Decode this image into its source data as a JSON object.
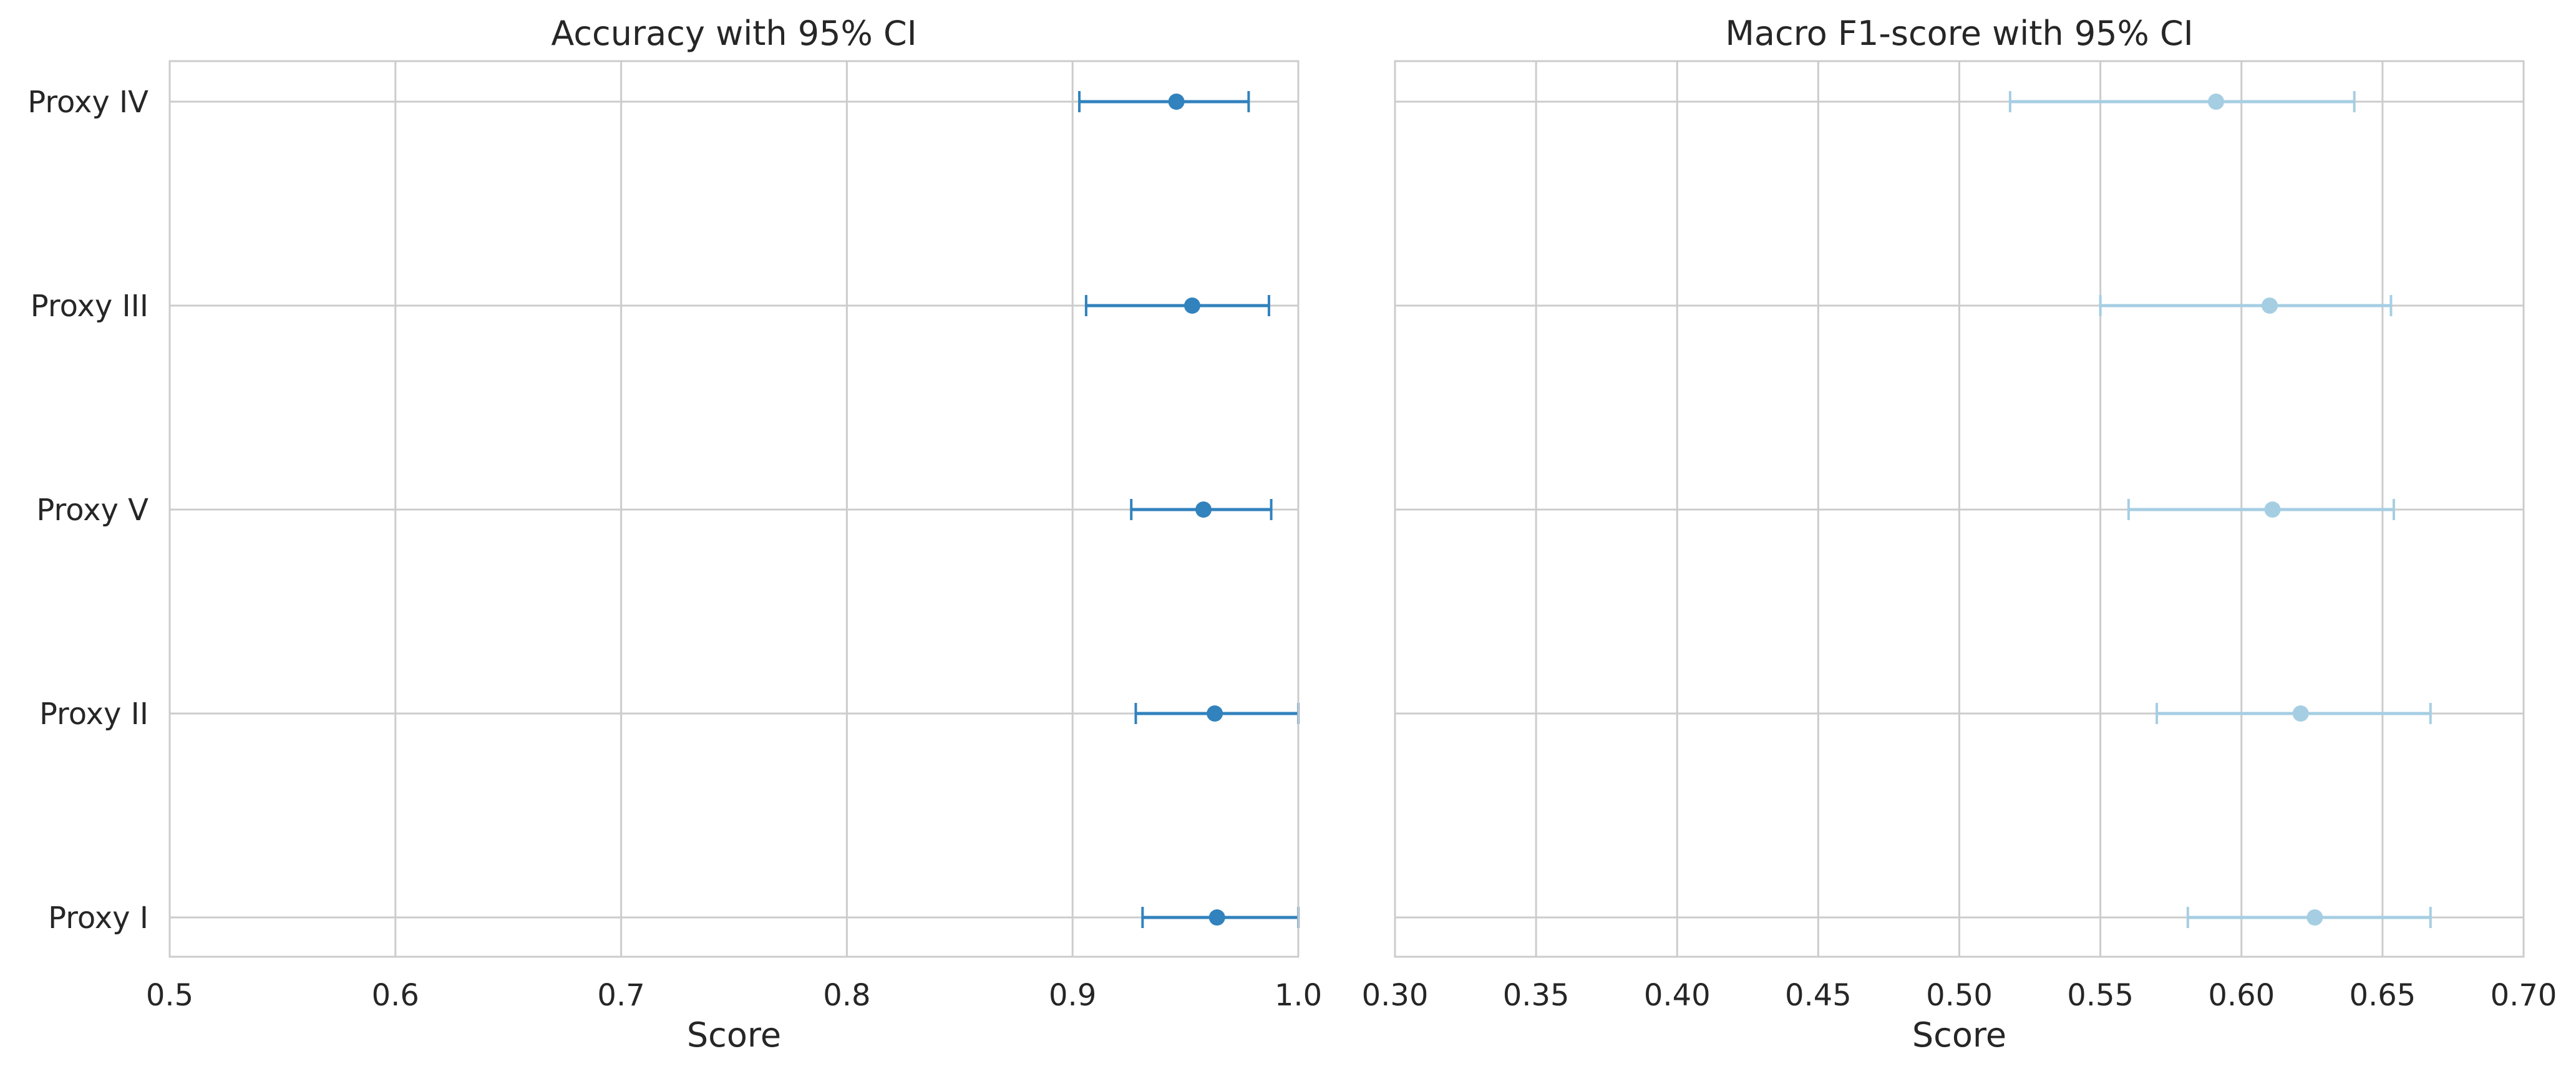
{
  "chart_data": [
    {
      "type": "errorbar",
      "title": "Accuracy with 95% CI",
      "xlabel": "Score",
      "ylabel": "",
      "xlim": [
        0.5,
        1.0
      ],
      "xticks": [
        "0.5",
        "0.6",
        "0.7",
        "0.8",
        "0.9",
        "1.0"
      ],
      "categories": [
        "Proxy IV",
        "Proxy III",
        "Proxy V",
        "Proxy II",
        "Proxy I"
      ],
      "values": [
        0.946,
        0.953,
        0.958,
        0.963,
        0.964
      ],
      "ci_low": [
        0.903,
        0.906,
        0.926,
        0.928,
        0.931
      ],
      "ci_high": [
        0.978,
        0.987,
        0.988,
        1.0,
        1.0
      ],
      "color": "#3182bd",
      "grid": true
    },
    {
      "type": "errorbar",
      "title": "Macro F1-score with 95% CI",
      "xlabel": "Score",
      "ylabel": "",
      "xlim": [
        0.3,
        0.7
      ],
      "xticks": [
        "0.30",
        "0.35",
        "0.40",
        "0.45",
        "0.50",
        "0.55",
        "0.60",
        "0.65",
        "0.70"
      ],
      "categories": [
        "Proxy IV",
        "Proxy III",
        "Proxy V",
        "Proxy II",
        "Proxy I"
      ],
      "values": [
        0.591,
        0.61,
        0.611,
        0.621,
        0.626
      ],
      "ci_low": [
        0.518,
        0.55,
        0.56,
        0.57,
        0.581
      ],
      "ci_high": [
        0.64,
        0.653,
        0.654,
        0.667,
        0.667
      ],
      "color": "#a6cee3",
      "grid": true
    }
  ]
}
